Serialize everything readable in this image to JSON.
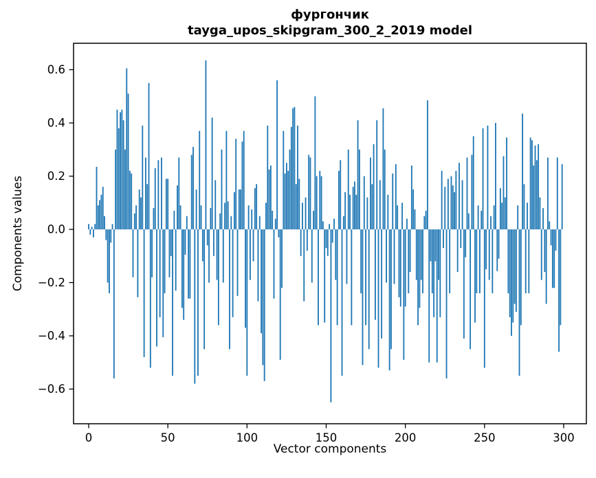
{
  "figure": {
    "title_line1": "фургончик",
    "title_line2": "tayga_upos_skipgram_300_2_2019 model",
    "xlabel": "Vector components",
    "ylabel": "Components values",
    "background": "#ffffff",
    "spine_color": "#000000"
  },
  "chart_data": {
    "type": "bar",
    "title": "фургончик — tayga_upos_skipgram_300_2_2019 model",
    "xlabel": "Vector components",
    "ylabel": "Components values",
    "bar_color": "#1f77b4",
    "n_components": 300,
    "grid": false,
    "legend": null,
    "x_ticks": [
      0,
      50,
      100,
      150,
      200,
      250,
      300
    ],
    "x_tick_labels": [
      "0",
      "50",
      "100",
      "150",
      "200",
      "250",
      "300"
    ],
    "y_ticks": [
      -0.6,
      -0.4,
      -0.2,
      0.0,
      0.2,
      0.4,
      0.6
    ],
    "y_tick_labels": [
      "−0.6",
      "−0.4",
      "−0.2",
      "0.0",
      "0.2",
      "0.4",
      "0.6"
    ],
    "xlim": [
      -15.4,
      314.4
    ],
    "ylim": [
      -0.73,
      0.7
    ],
    "values": [
      0.02,
      -0.02,
      0.01,
      -0.03,
      0.02,
      0.235,
      0.09,
      0.11,
      0.13,
      0.16,
      0.05,
      -0.04,
      -0.2,
      -0.24,
      -0.05,
      0.02,
      -0.56,
      0.3,
      0.45,
      0.38,
      0.44,
      0.45,
      0.41,
      0.3,
      0.605,
      0.51,
      0.22,
      0.21,
      -0.18,
      0.06,
      0.09,
      -0.255,
      0.15,
      0.12,
      0.39,
      -0.48,
      0.27,
      0.17,
      0.55,
      -0.52,
      -0.18,
      0.08,
      0.23,
      -0.44,
      0.26,
      -0.33,
      0.27,
      -0.405,
      -0.24,
      0.19,
      0.19,
      -0.18,
      -0.1,
      -0.55,
      0.07,
      -0.23,
      0.165,
      0.27,
      0.09,
      -0.295,
      -0.34,
      -0.095,
      0.05,
      -0.26,
      -0.26,
      0.28,
      0.31,
      -0.58,
      0.15,
      -0.55,
      0.37,
      0.09,
      -0.12,
      -0.45,
      0.635,
      -0.06,
      -0.2,
      0.08,
      0.42,
      -0.1,
      0.185,
      -0.19,
      -0.36,
      0.06,
      0.3,
      -0.2,
      0.1,
      0.37,
      0.105,
      -0.45,
      0.05,
      -0.33,
      0.14,
      0.34,
      -0.25,
      0.15,
      0.15,
      0.33,
      0.37,
      -0.37,
      -0.55,
      0.09,
      -0.19,
      0.075,
      -0.12,
      0.155,
      0.17,
      -0.27,
      0.05,
      -0.39,
      -0.51,
      -0.57,
      0.1,
      0.39,
      0.225,
      0.24,
      0.07,
      -0.26,
      0.04,
      0.56,
      -0.03,
      -0.49,
      -0.22,
      0.37,
      0.21,
      0.25,
      0.22,
      0.3,
      0.385,
      0.455,
      0.46,
      0.17,
      0.39,
      0.19,
      -0.1,
      0.1,
      -0.27,
      0.12,
      -0.08,
      0.28,
      0.27,
      -0.2,
      0.07,
      0.5,
      0.2,
      -0.36,
      0.22,
      0.2,
      0.03,
      -0.35,
      -0.07,
      -0.1,
      0.02,
      -0.65,
      -0.05,
      0.04,
      -0.19,
      -0.36,
      0.22,
      0.26,
      -0.55,
      0.05,
      0.14,
      -0.205,
      0.3,
      0.13,
      -0.36,
      0.16,
      0.18,
      0.13,
      0.41,
      0.3,
      -0.24,
      -0.51,
      0.2,
      -0.36,
      0.12,
      -0.45,
      0.27,
      0.17,
      0.32,
      -0.34,
      0.41,
      -0.52,
      0.185,
      -0.41,
      0.455,
      0.3,
      -0.2,
      0.13,
      -0.53,
      -0.45,
      0.21,
      -0.205,
      0.245,
      0.09,
      -0.255,
      -0.29,
      0.1,
      -0.49,
      -0.29,
      0.04,
      -0.24,
      -0.16,
      0.24,
      0.15,
      0.075,
      -0.19,
      -0.36,
      -0.295,
      -0.19,
      -0.24,
      0.05,
      0.07,
      0.485,
      -0.5,
      -0.12,
      -0.24,
      -0.33,
      -0.12,
      -0.5,
      -0.19,
      -0.33,
      0.22,
      -0.07,
      0.16,
      -0.56,
      0.19,
      -0.24,
      0.2,
      0.165,
      0.14,
      0.22,
      -0.16,
      0.25,
      -0.07,
      0.185,
      -0.41,
      -0.105,
      0.27,
      0.06,
      -0.45,
      0.28,
      0.35,
      -0.35,
      -0.24,
      0.09,
      -0.24,
      0.07,
      0.38,
      -0.52,
      -0.15,
      0.39,
      -0.19,
      0.05,
      -0.24,
      0.09,
      0.4,
      -0.157,
      -0.11,
      0.155,
      0.1,
      0.275,
      0.12,
      0.345,
      -0.24,
      -0.33,
      -0.4,
      -0.35,
      -0.28,
      -0.31,
      0.09,
      -0.55,
      -0.36,
      0.435,
      0.17,
      -0.24,
      0.1,
      -0.24,
      0.345,
      0.335,
      0.24,
      0.315,
      0.26,
      0.32,
      0.12,
      -0.19,
      0.08,
      -0.16,
      -0.28,
      0.27,
      0.03,
      -0.06,
      -0.22,
      -0.22,
      -0.08,
      0.27,
      -0.46,
      -0.36,
      0.245
    ]
  }
}
